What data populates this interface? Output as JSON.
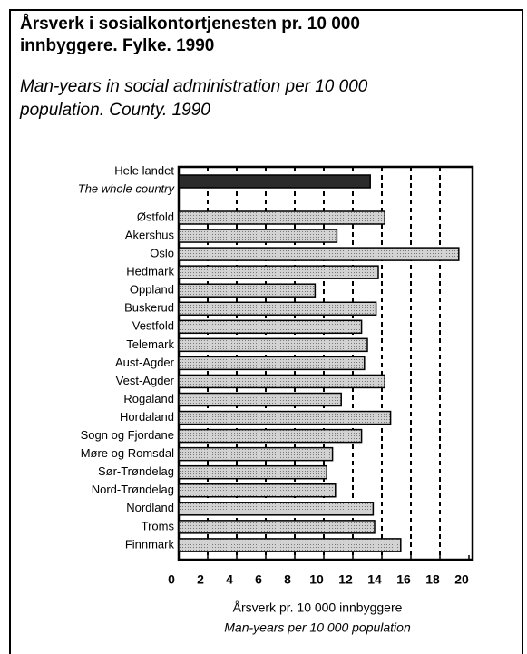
{
  "chart_data": {
    "type": "bar",
    "orientation": "horizontal",
    "title": [
      "Årsverk i sosialkontortjenesten pr. 10 000",
      "innbyggere. Fylke. 1990"
    ],
    "subtitle": [
      "Man-years in social administration per 10 000",
      "population. County. 1990"
    ],
    "categories": [
      "Hele landet",
      "Østfold",
      "Akershus",
      "Oslo",
      "Hedmark",
      "Oppland",
      "Buskerud",
      "Vestfold",
      "Telemark",
      "Aust-Agder",
      "Vest-Agder",
      "Rogaland",
      "Hordaland",
      "Sogn og Fjordane",
      "Møre og Romsdal",
      "Sør-Trøndelag",
      "Nord-Trøndelag",
      "Nordland",
      "Troms",
      "Finnmark"
    ],
    "first_category_subtitle": "The whole country",
    "values": [
      13.2,
      14.2,
      10.9,
      19.3,
      13.75,
      9.4,
      13.6,
      12.6,
      13.0,
      12.8,
      14.2,
      11.2,
      14.6,
      12.6,
      10.6,
      10.2,
      10.8,
      13.4,
      13.5,
      15.3
    ],
    "color": "#d2d2d2",
    "highlight_color": "#2b2b2b",
    "xlim": [
      0,
      20
    ],
    "xticks": [
      0,
      2,
      4,
      6,
      8,
      10,
      12,
      14,
      16,
      18,
      20
    ],
    "grid": true,
    "xlabel": [
      "Årsverk pr. 10 000 innbyggere",
      "Man-years per 10 000 population"
    ]
  }
}
